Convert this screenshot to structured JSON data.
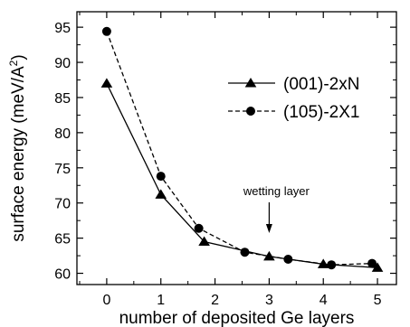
{
  "chart_data": {
    "type": "line",
    "xlabel": "number of deposited Ge layers",
    "ylabel": "surface energy (meV/A",
    "ylabel_superscript": "2",
    "ylabel_suffix": ")",
    "xlim": [
      -0.55,
      5.35
    ],
    "ylim": [
      58.4,
      97.2
    ],
    "x_ticks": [
      0,
      1,
      2,
      3,
      4,
      5
    ],
    "y_ticks": [
      60,
      65,
      70,
      75,
      80,
      85,
      90,
      95
    ],
    "legend_position": "right",
    "series": [
      {
        "name": "(001)-2xN",
        "marker": "triangle",
        "line_style": "solid",
        "x": [
          0,
          1,
          1.8,
          3,
          4,
          5
        ],
        "y": [
          87,
          71.2,
          64.5,
          62.4,
          61.3,
          60.8
        ]
      },
      {
        "name": "(105)-2X1",
        "marker": "circle",
        "line_style": "dashed",
        "x": [
          0,
          1,
          1.7,
          2.55,
          3.35,
          4.15,
          4.9
        ],
        "y": [
          94.4,
          73.8,
          66.4,
          63,
          62,
          61.2,
          61.4
        ]
      }
    ],
    "annotations": [
      {
        "text": "wetting layer",
        "x": 3,
        "y": 64
      }
    ]
  }
}
